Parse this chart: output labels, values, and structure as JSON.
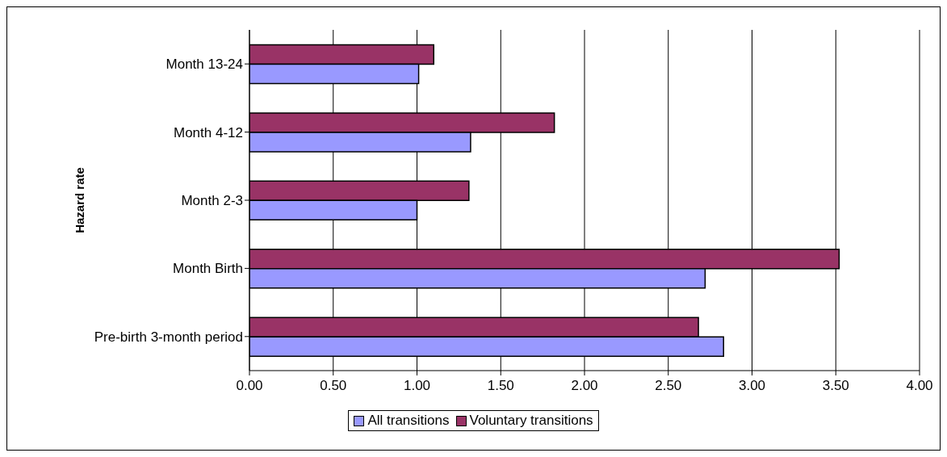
{
  "chart_data": {
    "type": "bar",
    "orientation": "horizontal",
    "ylabel": "Hazard rate",
    "categories": [
      "Month 13-24",
      "Month 4-12",
      "Month 2-3",
      "Month Birth",
      "Pre-birth 3-month period"
    ],
    "series": [
      {
        "name": "All transitions",
        "color": "#9999ff",
        "values": [
          1.01,
          1.32,
          1.0,
          2.72,
          2.83
        ]
      },
      {
        "name": "Voluntary transitions",
        "color": "#993366",
        "values": [
          1.1,
          1.82,
          1.31,
          3.52,
          2.68
        ]
      }
    ],
    "xlim": [
      0,
      4
    ],
    "xticks": [
      {
        "value": 0,
        "label": "0.00"
      },
      {
        "value": 0.5,
        "label": "0.50"
      },
      {
        "value": 1,
        "label": "1.00"
      },
      {
        "value": 1.5,
        "label": "1.50"
      },
      {
        "value": 2,
        "label": "2.00"
      },
      {
        "value": 2.5,
        "label": "2.50"
      },
      {
        "value": 3,
        "label": "3.00"
      },
      {
        "value": 3.5,
        "label": "3.50"
      },
      {
        "value": 4,
        "label": "4.00"
      }
    ],
    "grid": "x",
    "legend": "bottom"
  }
}
